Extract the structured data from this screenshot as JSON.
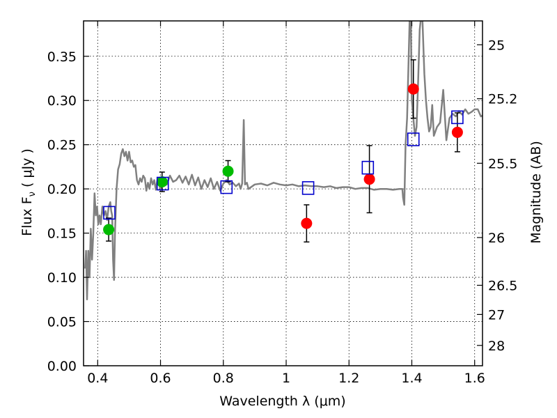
{
  "chart_data": {
    "type": "scatter",
    "xlabel": "Wavelength  λ (μm)",
    "ylabel": "Flux  F",
    "ylabel_sub": "ν",
    "ylabel_unit": "  ( μJy )",
    "y2label": "Magnitude (AB)",
    "xlim": [
      0.355,
      1.625
    ],
    "ylim": [
      0.0,
      0.39
    ],
    "xticks": [
      0.4,
      0.6,
      0.8,
      1.0,
      1.2,
      1.4,
      1.6
    ],
    "xtick_labels": [
      "0.4",
      "0.6",
      "0.8",
      "1",
      "1.2",
      "1.4",
      "1.6"
    ],
    "yticks": [
      0.0,
      0.05,
      0.1,
      0.15,
      0.2,
      0.25,
      0.3,
      0.35
    ],
    "ytick_labels": [
      "0.00",
      "0.05",
      "0.10",
      "0.15",
      "0.20",
      "0.25",
      "0.30",
      "0.35"
    ],
    "y2ticks": [
      {
        "label": "25",
        "flux": 0.363
      },
      {
        "label": "25.2",
        "flux": 0.302
      },
      {
        "label": "25.5",
        "flux": 0.229
      },
      {
        "label": "26",
        "flux": 0.145
      },
      {
        "label": "26.5",
        "flux": 0.091
      },
      {
        "label": "27",
        "flux": 0.058
      },
      {
        "label": "28",
        "flux": 0.023
      }
    ],
    "grid": true,
    "series": [
      {
        "type": "line",
        "color": "#808080",
        "points": [
          [
            0.36,
            0.11
          ],
          [
            0.363,
            0.13
          ],
          [
            0.366,
            0.075
          ],
          [
            0.37,
            0.13
          ],
          [
            0.374,
            0.1
          ],
          [
            0.378,
            0.155
          ],
          [
            0.382,
            0.12
          ],
          [
            0.386,
            0.15
          ],
          [
            0.39,
            0.195
          ],
          [
            0.394,
            0.17
          ],
          [
            0.398,
            0.18
          ],
          [
            0.402,
            0.16
          ],
          [
            0.406,
            0.17
          ],
          [
            0.41,
            0.16
          ],
          [
            0.415,
            0.18
          ],
          [
            0.42,
            0.17
          ],
          [
            0.425,
            0.175
          ],
          [
            0.43,
            0.165
          ],
          [
            0.435,
            0.18
          ],
          [
            0.44,
            0.185
          ],
          [
            0.443,
            0.175
          ],
          [
            0.446,
            0.17
          ],
          [
            0.449,
            0.12
          ],
          [
            0.452,
            0.097
          ],
          [
            0.455,
            0.15
          ],
          [
            0.46,
            0.2
          ],
          [
            0.465,
            0.222
          ],
          [
            0.47,
            0.228
          ],
          [
            0.475,
            0.24
          ],
          [
            0.48,
            0.245
          ],
          [
            0.485,
            0.237
          ],
          [
            0.49,
            0.242
          ],
          [
            0.495,
            0.232
          ],
          [
            0.5,
            0.242
          ],
          [
            0.505,
            0.23
          ],
          [
            0.51,
            0.232
          ],
          [
            0.515,
            0.225
          ],
          [
            0.52,
            0.227
          ],
          [
            0.525,
            0.21
          ],
          [
            0.53,
            0.205
          ],
          [
            0.535,
            0.212
          ],
          [
            0.54,
            0.208
          ],
          [
            0.545,
            0.215
          ],
          [
            0.55,
            0.212
          ],
          [
            0.555,
            0.198
          ],
          [
            0.56,
            0.207
          ],
          [
            0.565,
            0.2
          ],
          [
            0.57,
            0.212
          ],
          [
            0.575,
            0.205
          ],
          [
            0.58,
            0.21
          ],
          [
            0.585,
            0.199
          ],
          [
            0.59,
            0.21
          ],
          [
            0.6,
            0.2
          ],
          [
            0.61,
            0.212
          ],
          [
            0.62,
            0.205
          ],
          [
            0.63,
            0.215
          ],
          [
            0.64,
            0.208
          ],
          [
            0.65,
            0.21
          ],
          [
            0.66,
            0.215
          ],
          [
            0.67,
            0.207
          ],
          [
            0.68,
            0.214
          ],
          [
            0.69,
            0.205
          ],
          [
            0.7,
            0.216
          ],
          [
            0.71,
            0.204
          ],
          [
            0.72,
            0.213
          ],
          [
            0.73,
            0.2
          ],
          [
            0.74,
            0.21
          ],
          [
            0.75,
            0.202
          ],
          [
            0.76,
            0.212
          ],
          [
            0.77,
            0.2
          ],
          [
            0.78,
            0.208
          ],
          [
            0.79,
            0.198
          ],
          [
            0.8,
            0.206
          ],
          [
            0.81,
            0.21
          ],
          [
            0.82,
            0.205
          ],
          [
            0.83,
            0.207
          ],
          [
            0.84,
            0.203
          ],
          [
            0.85,
            0.206
          ],
          [
            0.855,
            0.2
          ],
          [
            0.86,
            0.206
          ],
          [
            0.865,
            0.278
          ],
          [
            0.869,
            0.205
          ],
          [
            0.875,
            0.207
          ],
          [
            0.88,
            0.2
          ],
          [
            0.9,
            0.205
          ],
          [
            0.92,
            0.206
          ],
          [
            0.94,
            0.204
          ],
          [
            0.96,
            0.207
          ],
          [
            0.98,
            0.205
          ],
          [
            1.0,
            0.204
          ],
          [
            1.02,
            0.205
          ],
          [
            1.04,
            0.203
          ],
          [
            1.06,
            0.204
          ],
          [
            1.08,
            0.203
          ],
          [
            1.1,
            0.203
          ],
          [
            1.12,
            0.202
          ],
          [
            1.14,
            0.203
          ],
          [
            1.16,
            0.201
          ],
          [
            1.18,
            0.202
          ],
          [
            1.2,
            0.202
          ],
          [
            1.22,
            0.2
          ],
          [
            1.24,
            0.201
          ],
          [
            1.26,
            0.201
          ],
          [
            1.28,
            0.199
          ],
          [
            1.3,
            0.2
          ],
          [
            1.32,
            0.2
          ],
          [
            1.34,
            0.199
          ],
          [
            1.36,
            0.2
          ],
          [
            1.37,
            0.2
          ],
          [
            1.372,
            0.19
          ],
          [
            1.376,
            0.182
          ],
          [
            1.38,
            0.25
          ],
          [
            1.385,
            0.28
          ],
          [
            1.39,
            0.35
          ],
          [
            1.393,
            0.39
          ],
          [
            1.397,
            0.39
          ],
          [
            1.4,
            0.3
          ],
          [
            1.405,
            0.28
          ],
          [
            1.41,
            0.26
          ],
          [
            1.415,
            0.27
          ],
          [
            1.42,
            0.32
          ],
          [
            1.425,
            0.38
          ],
          [
            1.428,
            0.39
          ],
          [
            1.434,
            0.39
          ],
          [
            1.44,
            0.33
          ],
          [
            1.445,
            0.3
          ],
          [
            1.45,
            0.28
          ],
          [
            1.455,
            0.265
          ],
          [
            1.46,
            0.27
          ],
          [
            1.465,
            0.295
          ],
          [
            1.47,
            0.26
          ],
          [
            1.48,
            0.27
          ],
          [
            1.49,
            0.275
          ],
          [
            1.5,
            0.312
          ],
          [
            1.51,
            0.255
          ],
          [
            1.52,
            0.28
          ],
          [
            1.53,
            0.285
          ],
          [
            1.54,
            0.282
          ],
          [
            1.55,
            0.288
          ],
          [
            1.56,
            0.284
          ],
          [
            1.57,
            0.29
          ],
          [
            1.58,
            0.285
          ],
          [
            1.59,
            0.287
          ],
          [
            1.6,
            0.29
          ],
          [
            1.61,
            0.29
          ],
          [
            1.62,
            0.282
          ],
          [
            1.625,
            0.283
          ]
        ]
      },
      {
        "type": "scatter",
        "marker": "circle",
        "color": "#00bb00",
        "points": [
          {
            "x": 0.435,
            "y": 0.154,
            "err": 0.013
          },
          {
            "x": 0.605,
            "y": 0.208,
            "err": 0.011
          },
          {
            "x": 0.815,
            "y": 0.22,
            "err": 0.012
          }
        ]
      },
      {
        "type": "scatter",
        "marker": "circle",
        "color": "#ff0000",
        "points": [
          {
            "x": 1.065,
            "y": 0.161,
            "err": 0.021
          },
          {
            "x": 1.265,
            "y": 0.211,
            "err": 0.038
          },
          {
            "x": 1.405,
            "y": 0.313,
            "err": 0.033
          },
          {
            "x": 1.545,
            "y": 0.264,
            "err": 0.022
          }
        ]
      },
      {
        "type": "scatter",
        "marker": "open-square",
        "color": "#0000cc",
        "points": [
          {
            "x": 0.437,
            "y": 0.173
          },
          {
            "x": 0.607,
            "y": 0.206
          },
          {
            "x": 0.81,
            "y": 0.202
          },
          {
            "x": 1.07,
            "y": 0.201
          },
          {
            "x": 1.26,
            "y": 0.224
          },
          {
            "x": 1.405,
            "y": 0.256
          },
          {
            "x": 1.545,
            "y": 0.281
          }
        ]
      }
    ]
  }
}
